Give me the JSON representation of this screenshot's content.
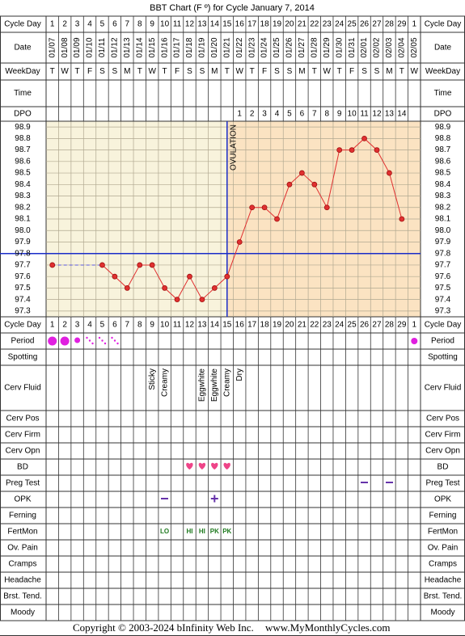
{
  "title": "BBT Chart (F º) for Cycle January 7, 2014",
  "footer": {
    "copyright": "Copyright © 2003-2024 bInfinity Web Inc.",
    "site": "www.MyMonthlyCycles.com"
  },
  "labels": [
    "Cycle Day",
    "Date",
    "WeekDay",
    "Time",
    "DPO",
    "Cycle Day",
    "Period",
    "Spotting",
    "Cerv Fluid",
    "Cerv Pos",
    "Cerv Firm",
    "Cerv Opn",
    "BD",
    "Preg Test",
    "OPK",
    "Ferning",
    "FertMon",
    "Ov. Pain",
    "Cramps",
    "Headache",
    "Brst. Tend.",
    "Moody"
  ],
  "chart_data": {
    "type": "line",
    "categories": [
      1,
      2,
      3,
      4,
      5,
      6,
      7,
      8,
      9,
      10,
      11,
      12,
      13,
      14,
      15,
      16,
      17,
      18,
      19,
      20,
      21,
      22,
      23,
      24,
      25,
      26,
      27,
      28,
      29,
      1
    ],
    "dates": [
      "01/07",
      "01/08",
      "01/09",
      "01/10",
      "01/11",
      "01/12",
      "01/13",
      "01/14",
      "01/15",
      "01/16",
      "01/17",
      "01/18",
      "01/19",
      "01/20",
      "01/21",
      "01/22",
      "01/23",
      "01/24",
      "01/25",
      "01/26",
      "01/27",
      "01/28",
      "01/29",
      "01/30",
      "01/31",
      "02/01",
      "02/02",
      "02/03",
      "02/04",
      "02/05"
    ],
    "weekdays": [
      "T",
      "W",
      "T",
      "F",
      "S",
      "S",
      "M",
      "T",
      "W",
      "T",
      "F",
      "S",
      "S",
      "M",
      "T",
      "W",
      "T",
      "F",
      "S",
      "S",
      "M",
      "T",
      "W",
      "T",
      "F",
      "S",
      "S",
      "M",
      "T",
      "W"
    ],
    "dpo": [
      null,
      null,
      null,
      null,
      null,
      null,
      null,
      null,
      null,
      null,
      null,
      null,
      null,
      null,
      null,
      1,
      2,
      3,
      4,
      5,
      6,
      7,
      8,
      9,
      10,
      11,
      12,
      13,
      14,
      null
    ],
    "values": [
      97.7,
      null,
      null,
      null,
      97.7,
      97.6,
      97.5,
      97.7,
      97.7,
      97.5,
      97.4,
      97.6,
      97.4,
      97.5,
      97.6,
      97.9,
      98.2,
      98.2,
      98.1,
      98.4,
      98.5,
      98.4,
      98.2,
      98.7,
      98.7,
      98.8,
      98.7,
      98.5,
      98.1,
      null
    ],
    "color": "#e03030",
    "ylim": [
      97.25,
      98.95
    ],
    "yticks": [
      98.9,
      98.8,
      98.7,
      98.6,
      98.5,
      98.4,
      98.3,
      98.2,
      98.1,
      {
        "value": 98,
        "label": "98.0"
      },
      97.9,
      97.8,
      97.7,
      97.6,
      97.5,
      97.4,
      97.3
    ],
    "coverline": 97.8,
    "ovulation_day": 15,
    "ovulation_label": "OVULATION",
    "cerv_fluid": [
      null,
      null,
      null,
      null,
      null,
      null,
      null,
      null,
      "Sticky",
      "Creamy",
      null,
      null,
      "Eggwhite",
      "Eggwhite",
      "Creamy",
      "Dry",
      null,
      null,
      null,
      null,
      null,
      null,
      null,
      null,
      null,
      null,
      null,
      null,
      null,
      null
    ],
    "fertmon": [
      null,
      null,
      null,
      null,
      null,
      null,
      null,
      null,
      null,
      "LO",
      null,
      "HI",
      "HI",
      "PK",
      "PK",
      null,
      null,
      null,
      null,
      null,
      null,
      null,
      null,
      null,
      null,
      null,
      null,
      null,
      null,
      null
    ],
    "grid": true
  }
}
